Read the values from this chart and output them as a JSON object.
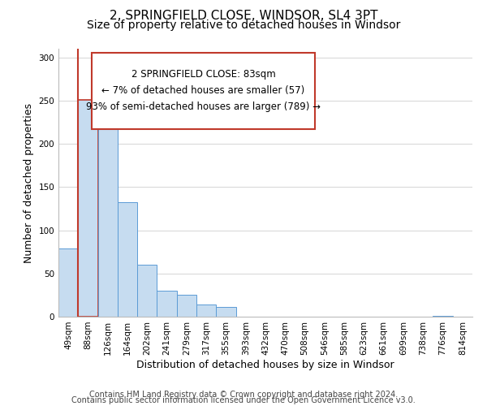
{
  "title": "2, SPRINGFIELD CLOSE, WINDSOR, SL4 3PT",
  "subtitle": "Size of property relative to detached houses in Windsor",
  "xlabel": "Distribution of detached houses by size in Windsor",
  "ylabel": "Number of detached properties",
  "bar_labels": [
    "49sqm",
    "88sqm",
    "126sqm",
    "164sqm",
    "202sqm",
    "241sqm",
    "279sqm",
    "317sqm",
    "355sqm",
    "393sqm",
    "432sqm",
    "470sqm",
    "508sqm",
    "546sqm",
    "585sqm",
    "623sqm",
    "661sqm",
    "699sqm",
    "738sqm",
    "776sqm",
    "814sqm"
  ],
  "bar_values": [
    79,
    251,
    246,
    132,
    60,
    30,
    25,
    14,
    11,
    0,
    0,
    0,
    0,
    0,
    0,
    0,
    0,
    0,
    0,
    1,
    0
  ],
  "bar_color": "#c6dcf0",
  "bar_edge_color": "#5b9bd5",
  "highlight_bar_index": 1,
  "highlight_edge_color": "#c0392b",
  "red_line_bar_index": 1,
  "annotation_line1": "2 SPRINGFIELD CLOSE: 83sqm",
  "annotation_line2": "← 7% of detached houses are smaller (57)",
  "annotation_line3": "93% of semi-detached houses are larger (789) →",
  "ylim": [
    0,
    310
  ],
  "yticks": [
    0,
    50,
    100,
    150,
    200,
    250,
    300
  ],
  "footer_line1": "Contains HM Land Registry data © Crown copyright and database right 2024.",
  "footer_line2": "Contains public sector information licensed under the Open Government Licence v3.0.",
  "bg_color": "#ffffff",
  "grid_color": "#d5d5d5",
  "title_fontsize": 11,
  "subtitle_fontsize": 10,
  "axis_label_fontsize": 9,
  "tick_fontsize": 7.5,
  "annotation_fontsize": 8.5,
  "footer_fontsize": 7
}
